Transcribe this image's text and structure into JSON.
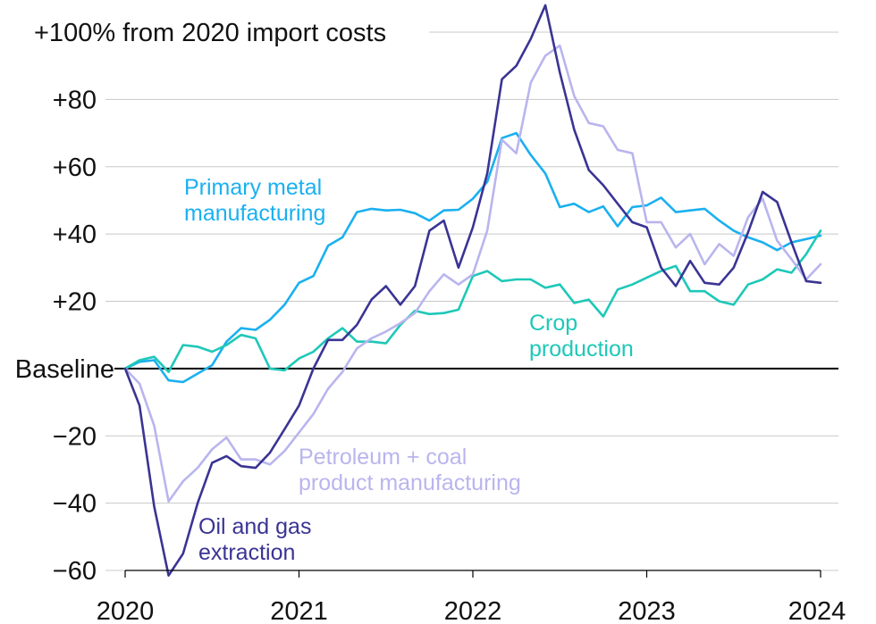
{
  "chart_data": {
    "type": "line",
    "title": "",
    "xlabel": "",
    "ylabel": "",
    "ylim": [
      -60,
      100
    ],
    "xlim": [
      2020,
      2024
    ],
    "grid": true,
    "y_ticks": [
      {
        "value": 100,
        "label": "+100% from 2020 import costs"
      },
      {
        "value": 80,
        "label": "+80"
      },
      {
        "value": 60,
        "label": "+60"
      },
      {
        "value": 40,
        "label": "+40"
      },
      {
        "value": 20,
        "label": "+20"
      },
      {
        "value": 0,
        "label": "Baseline"
      },
      {
        "value": -20,
        "label": "−20"
      },
      {
        "value": -40,
        "label": "−40"
      },
      {
        "value": -60,
        "label": "−60"
      }
    ],
    "x_ticks": [
      {
        "value": 2020,
        "label": "2020"
      },
      {
        "value": 2021,
        "label": "2021"
      },
      {
        "value": 2022,
        "label": "2022"
      },
      {
        "value": 2023,
        "label": "2023"
      },
      {
        "value": 2024,
        "label": "2024"
      }
    ],
    "series": [
      {
        "name": "Primary metal manufacturing",
        "label_lines": [
          "Primary metal",
          "manufacturing"
        ],
        "color": "#1ab0f0",
        "x": [
          2020.0,
          2020.083,
          2020.167,
          2020.25,
          2020.333,
          2020.417,
          2020.5,
          2020.583,
          2020.667,
          2020.75,
          2020.833,
          2020.917,
          2021.0,
          2021.083,
          2021.167,
          2021.25,
          2021.333,
          2021.417,
          2021.5,
          2021.583,
          2021.667,
          2021.75,
          2021.833,
          2021.917,
          2022.0,
          2022.083,
          2022.167,
          2022.25,
          2022.333,
          2022.417,
          2022.5,
          2022.583,
          2022.667,
          2022.75,
          2022.833,
          2022.917,
          2023.0,
          2023.083,
          2023.167,
          2023.25,
          2023.333,
          2023.417,
          2023.5,
          2023.583,
          2023.667,
          2023.75,
          2023.833,
          2023.917,
          2024.0
        ],
        "values": [
          0,
          2,
          2.5,
          -3.5,
          -4,
          -1.5,
          1,
          8,
          12,
          11.5,
          14.5,
          19,
          25.5,
          27.5,
          36.5,
          39,
          46.5,
          47.5,
          47,
          47.2,
          46.2,
          44,
          47,
          47.2,
          50.5,
          55.5,
          68.5,
          70,
          63.5,
          58,
          48,
          49,
          46.5,
          48.2,
          42.3,
          48,
          48.5,
          50.8,
          46.5,
          47,
          47.5,
          44,
          41,
          39,
          37.5,
          35.2,
          37.5,
          38.5,
          39.5
        ]
      },
      {
        "name": "Crop production",
        "label_lines": [
          "Crop",
          "production"
        ],
        "color": "#1ec8b8",
        "x": [
          2020.0,
          2020.083,
          2020.167,
          2020.25,
          2020.333,
          2020.417,
          2020.5,
          2020.583,
          2020.667,
          2020.75,
          2020.833,
          2020.917,
          2021.0,
          2021.083,
          2021.167,
          2021.25,
          2021.333,
          2021.417,
          2021.5,
          2021.583,
          2021.667,
          2021.75,
          2021.833,
          2021.917,
          2022.0,
          2022.083,
          2022.167,
          2022.25,
          2022.333,
          2022.417,
          2022.5,
          2022.583,
          2022.667,
          2022.75,
          2022.833,
          2022.917,
          2023.0,
          2023.083,
          2023.167,
          2023.25,
          2023.333,
          2023.417,
          2023.5,
          2023.583,
          2023.667,
          2023.75,
          2023.833,
          2023.917,
          2024.0
        ],
        "values": [
          0,
          2.5,
          3.5,
          -1,
          7,
          6.5,
          5,
          7,
          10,
          9,
          0,
          -0.5,
          3,
          5,
          9,
          12,
          8,
          8,
          7.5,
          13,
          17.2,
          16.2,
          16.5,
          17.5,
          27.5,
          29,
          26,
          26.5,
          26.5,
          24,
          25,
          19.5,
          20.5,
          15.5,
          23.5,
          25,
          27,
          29,
          30.5,
          23,
          23,
          20,
          19,
          25,
          26.5,
          29.5,
          28.5,
          34,
          41
        ]
      },
      {
        "name": "Petroleum + coal product manufacturing",
        "label_lines": [
          "Petroleum + coal",
          "product manufacturing"
        ],
        "color": "#b9b5ee",
        "x": [
          2020.0,
          2020.083,
          2020.167,
          2020.25,
          2020.333,
          2020.417,
          2020.5,
          2020.583,
          2020.667,
          2020.75,
          2020.833,
          2020.917,
          2021.0,
          2021.083,
          2021.167,
          2021.25,
          2021.333,
          2021.417,
          2021.5,
          2021.583,
          2021.667,
          2021.75,
          2021.833,
          2021.917,
          2022.0,
          2022.083,
          2022.167,
          2022.25,
          2022.333,
          2022.417,
          2022.5,
          2022.583,
          2022.667,
          2022.75,
          2022.833,
          2022.917,
          2023.0,
          2023.083,
          2023.167,
          2023.25,
          2023.333,
          2023.417,
          2023.5,
          2023.583,
          2023.667,
          2023.75,
          2023.833,
          2023.917,
          2024.0
        ],
        "values": [
          0,
          -4.5,
          -17,
          -39.5,
          -33.5,
          -29.5,
          -24,
          -20.5,
          -27,
          -27,
          -28.5,
          -24.5,
          -19,
          -13.5,
          -6,
          -1,
          6,
          9,
          11,
          13.5,
          16.5,
          23,
          28,
          25,
          28,
          41,
          68,
          64,
          85,
          93,
          96,
          81,
          73,
          72,
          65,
          64,
          43.5,
          43.5,
          36,
          40,
          31,
          37,
          33.5,
          45,
          50.5,
          38,
          32.5,
          26.5,
          31
        ]
      },
      {
        "name": "Oil and gas extraction",
        "label_lines": [
          "Oil and gas",
          "extraction"
        ],
        "color": "#3a3494",
        "x": [
          2020.0,
          2020.083,
          2020.167,
          2020.25,
          2020.333,
          2020.417,
          2020.5,
          2020.583,
          2020.667,
          2020.75,
          2020.833,
          2020.917,
          2021.0,
          2021.083,
          2021.167,
          2021.25,
          2021.333,
          2021.417,
          2021.5,
          2021.583,
          2021.667,
          2021.75,
          2021.833,
          2021.917,
          2022.0,
          2022.083,
          2022.167,
          2022.25,
          2022.333,
          2022.417,
          2022.5,
          2022.583,
          2022.667,
          2022.75,
          2022.833,
          2022.917,
          2023.0,
          2023.083,
          2023.167,
          2023.25,
          2023.333,
          2023.417,
          2023.5,
          2023.583,
          2023.667,
          2023.75,
          2023.833,
          2023.917,
          2024.0
        ],
        "values": [
          0,
          -11,
          -41,
          -61.5,
          -55,
          -40,
          -28,
          -26,
          -29,
          -29.5,
          -25,
          -18,
          -11,
          0,
          8.5,
          8.5,
          13,
          20.5,
          24.5,
          19,
          24.5,
          41,
          44,
          30,
          42,
          58,
          86,
          90,
          98,
          108,
          88,
          71,
          59,
          54.5,
          49,
          43.5,
          42,
          30,
          24.5,
          32,
          25.5,
          25,
          30,
          40.5,
          52.5,
          49.5,
          37.5,
          26,
          25.5
        ]
      }
    ]
  }
}
